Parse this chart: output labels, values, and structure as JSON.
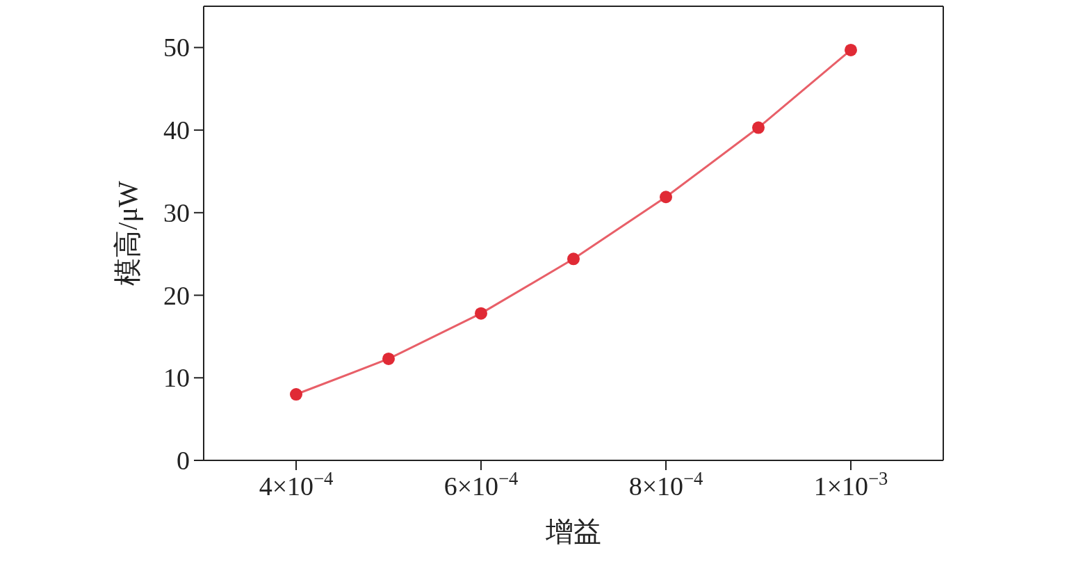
{
  "chart_data": {
    "type": "line",
    "xlabel": "增益",
    "ylabel": "模高/μW",
    "x": [
      0.0004,
      0.0005,
      0.0006,
      0.0007,
      0.0008,
      0.0009,
      0.001
    ],
    "series": [
      {
        "color": "#e02a35",
        "values": [
          8.0,
          12.3,
          17.8,
          24.4,
          31.9,
          40.3,
          49.7
        ]
      }
    ],
    "xlim": [
      0.0003,
      0.0011
    ],
    "ylim": [
      0,
      55
    ],
    "xticks": [
      {
        "value": 0.0004,
        "label": "4×10$^{−4}$"
      },
      {
        "value": 0.0006,
        "label": "6×10$^{−4}$"
      },
      {
        "value": 0.0008,
        "label": "8×10$^{−4}$"
      },
      {
        "value": 0.001,
        "label": "1×10$^{−3}$"
      }
    ],
    "yticks": [
      0,
      10,
      20,
      30,
      40,
      50
    ],
    "grid": false,
    "legend": false,
    "marker": "circle",
    "line_style": "solid"
  }
}
